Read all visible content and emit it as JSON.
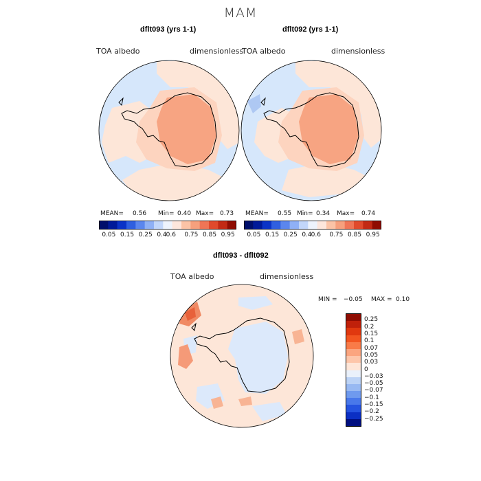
{
  "season": "MAM",
  "panels": [
    {
      "title": "dflt093 (yrs 1-1)",
      "var_label": "TOA albedo",
      "units": "dimensionless",
      "stats": {
        "mean_label": "MEAN=",
        "mean": "0.56",
        "min_label": "Min=",
        "min": "0.40",
        "max_label": "Max=",
        "max": "0.73"
      }
    },
    {
      "title": "dflt092 (yrs 1-1)",
      "var_label": "TOA albedo",
      "units": "dimensionless",
      "stats": {
        "mean_label": "MEAN=",
        "mean": "0.55",
        "min_label": "Min=",
        "min": "0.34",
        "max_label": "Max=",
        "max": "0.74"
      }
    }
  ],
  "abs_colorbar": {
    "ticks": [
      "0.05",
      "0.15",
      "0.25",
      "0.4",
      "0.6",
      "0.75",
      "0.85",
      "0.95"
    ],
    "colors": [
      "#000f6b",
      "#001a99",
      "#0b33c7",
      "#2f5fe0",
      "#5b86ee",
      "#8fb0f5",
      "#c2d6fa",
      "#eef3fc",
      "#fde6dc",
      "#fbc3a6",
      "#f6a07d",
      "#ef7556",
      "#e04a2c",
      "#c22a14",
      "#8f0d02"
    ]
  },
  "diff_panel": {
    "title": "dflt093 - dflt092",
    "var_label": "TOA albedo",
    "units": "dimensionless",
    "stats": {
      "min_label": "MIN =",
      "min": "−0.05",
      "max_label": "MAX =",
      "max": "0.10"
    }
  },
  "diff_colorbar": {
    "labels": [
      "0.25",
      "0.2",
      "0.15",
      "0.1",
      "0.07",
      "0.05",
      "0.03",
      "0",
      "−0.03",
      "−0.05",
      "−0.07",
      "−0.1",
      "−0.15",
      "−0.2",
      "−0.25"
    ],
    "colors": [
      "#8f0d02",
      "#c0200a",
      "#e0380f",
      "#f25520",
      "#f97b48",
      "#fba57f",
      "#fdc6aa",
      "#fee6d8",
      "#eaf1fb",
      "#bcd3f6",
      "#98b9f2",
      "#6f9aee",
      "#4978ea",
      "#2553e0",
      "#0b2fc4",
      "#000f80"
    ]
  }
}
